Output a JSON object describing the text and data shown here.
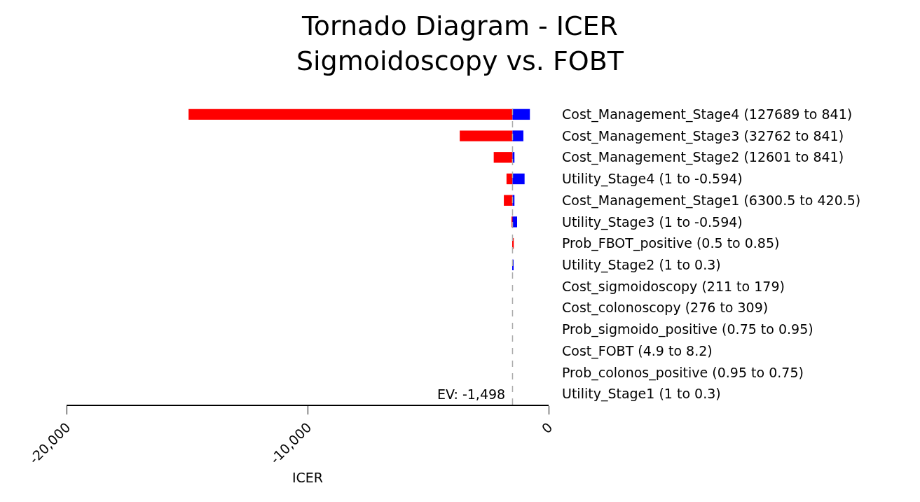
{
  "chart_data": {
    "type": "bar",
    "orientation": "horizontal",
    "title": "Tornado Diagram - ICER\nSigmoidoscopy vs. FOBT",
    "xlabel": "ICER",
    "categories": [
      "Cost_Management_Stage4 (127689 to 841)",
      "Cost_Management_Stage3 (32762 to 841)",
      "Cost_Management_Stage2 (12601 to 841)",
      "Utility_Stage4 (1 to -0.594)",
      "Cost_Management_Stage1 (6300.5 to 420.5)",
      "Utility_Stage3 (1 to -0.594)",
      "Prob_FBOT_positive (0.5 to 0.85)",
      "Utility_Stage2 (1 to 0.3)",
      "Cost_sigmoidoscopy (211 to 179)",
      "Cost_colonoscopy (276 to 309)",
      "Prob_sigmoido_positive (0.75 to 0.95)",
      "Cost_FOBT (4.9 to 8.2)",
      "Prob_colonos_positive (0.95 to 0.75)",
      "Utility_Stage1 (1 to 0.3)"
    ],
    "series": [
      {
        "color": "#ff0000",
        "base": [
          -1498,
          -1498,
          -1498,
          -1498,
          -1498,
          -1498,
          -1498,
          null,
          null,
          null,
          null,
          null,
          null,
          null
        ],
        "values": [
          -13440,
          -2190,
          -780,
          -250,
          -360,
          -40,
          50,
          null,
          null,
          null,
          null,
          null,
          null,
          null
        ]
      },
      {
        "color": "#0000ff",
        "base": [
          -1498,
          -1498,
          -1498,
          -1498,
          -1498,
          -1498,
          null,
          -1498,
          null,
          null,
          null,
          null,
          null,
          null
        ],
        "values": [
          720,
          450,
          80,
          500,
          80,
          190,
          null,
          30,
          null,
          null,
          null,
          null,
          null,
          null
        ]
      }
    ],
    "xlim": [
      -20000,
      0
    ],
    "xticks": [
      {
        "value": -20000,
        "label": "-20,000"
      },
      {
        "value": -10000,
        "label": "-10,000"
      },
      0
    ],
    "ref_lines": [
      {
        "axis": "x",
        "value": -1498,
        "label": "EV: -1,498",
        "color": "#aaaaaa",
        "line_style": "dashed"
      }
    ]
  }
}
